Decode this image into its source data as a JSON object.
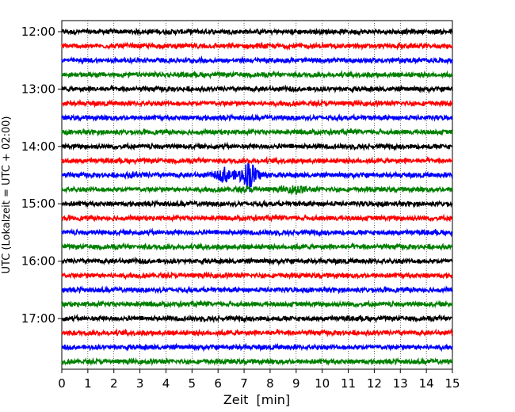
{
  "chart_data": {
    "type": "line",
    "title": "",
    "xlabel": "Zeit  [min]",
    "ylabel": "UTC (Lokalzeit = UTC + 02:00)",
    "xlim": [
      0,
      15
    ],
    "x_ticks": [
      0,
      1,
      2,
      3,
      4,
      5,
      6,
      7,
      8,
      9,
      10,
      11,
      12,
      13,
      14,
      15
    ],
    "grid": "vertical dotted",
    "row_interval_min": 15,
    "color_cycle": [
      "#000000",
      "#ff0000",
      "#0000ff",
      "#008000"
    ],
    "y_tick_labels": [
      "12:00",
      "13:00",
      "14:00",
      "15:00",
      "16:00",
      "17:00"
    ],
    "traces": [
      {
        "start": "12:00",
        "color": "#000000"
      },
      {
        "start": "12:15",
        "color": "#ff0000"
      },
      {
        "start": "12:30",
        "color": "#0000ff"
      },
      {
        "start": "12:45",
        "color": "#008000"
      },
      {
        "start": "13:00",
        "color": "#000000"
      },
      {
        "start": "13:15",
        "color": "#ff0000"
      },
      {
        "start": "13:30",
        "color": "#0000ff"
      },
      {
        "start": "13:45",
        "color": "#008000"
      },
      {
        "start": "14:00",
        "color": "#000000"
      },
      {
        "start": "14:15",
        "color": "#ff0000"
      },
      {
        "start": "14:30",
        "color": "#0000ff",
        "events": [
          {
            "t": 6.25,
            "amp": 0.6
          },
          {
            "t": 7.2,
            "amp": 1.45
          },
          {
            "t": 2.8,
            "amp": 0.15
          }
        ]
      },
      {
        "start": "14:45",
        "color": "#008000",
        "events": [
          {
            "t": 9.0,
            "amp": 0.4
          },
          {
            "t": 7.1,
            "amp": 0.12
          }
        ]
      },
      {
        "start": "15:00",
        "color": "#000000"
      },
      {
        "start": "15:15",
        "color": "#ff0000"
      },
      {
        "start": "15:30",
        "color": "#0000ff"
      },
      {
        "start": "15:45",
        "color": "#008000"
      },
      {
        "start": "16:00",
        "color": "#000000"
      },
      {
        "start": "16:15",
        "color": "#ff0000"
      },
      {
        "start": "16:30",
        "color": "#0000ff"
      },
      {
        "start": "16:45",
        "color": "#008000"
      },
      {
        "start": "17:00",
        "color": "#000000"
      },
      {
        "start": "17:15",
        "color": "#ff0000"
      },
      {
        "start": "17:30",
        "color": "#0000ff"
      },
      {
        "start": "17:45",
        "color": "#008000"
      }
    ]
  }
}
